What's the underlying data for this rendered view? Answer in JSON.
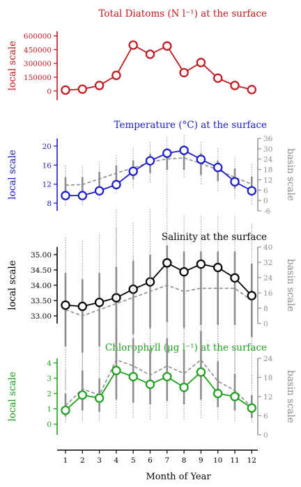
{
  "figure": {
    "xlabel": "Month of Year"
  },
  "chart_data": [
    {
      "type": "line",
      "title": "Total Diatoms (N l⁻¹) at the surface",
      "ylabel_left": "local scale",
      "ylabel_right": "",
      "color": "#c0181c",
      "x": [
        1,
        2,
        3,
        4,
        5,
        6,
        7,
        8,
        9,
        10,
        11,
        12
      ],
      "left_ticks": [
        0,
        150000,
        300000,
        450000,
        600000
      ],
      "left_ylim": [
        -100000,
        650000
      ],
      "series": [
        {
          "values": [
            10000,
            20000,
            60000,
            170000,
            500000,
            400000,
            490000,
            200000,
            310000,
            140000,
            60000,
            15000
          ]
        }
      ],
      "basin": null
    },
    {
      "type": "line",
      "title": "Temperature (°C) at the surface",
      "ylabel_left": "local scale",
      "ylabel_right": "basin scale",
      "color": "#1a1acc",
      "x": [
        1,
        2,
        3,
        4,
        5,
        6,
        7,
        8,
        9,
        10,
        11,
        12
      ],
      "left_ticks": [
        8,
        12,
        16,
        20
      ],
      "left_ylim": [
        6.4,
        21.6
      ],
      "series": [
        {
          "values": [
            9.6,
            9.6,
            10.6,
            11.9,
            14.7,
            16.9,
            18.5,
            19.1,
            17.2,
            15.5,
            12.5,
            10.6
          ]
        }
      ],
      "right_ticks": [
        -6,
        0,
        6,
        12,
        18,
        24,
        30,
        36
      ],
      "right_ylim": [
        -6,
        36
      ],
      "basin": {
        "median": [
          11.8,
          11.9,
          13.1,
          14.3,
          15.4,
          16.6,
          17.3,
          17.5,
          16.4,
          15.0,
          13.4,
          12.0
        ],
        "box_low": [
          9.5,
          9.6,
          10.8,
          12.0,
          13.0,
          14.3,
          15.0,
          15.0,
          13.9,
          12.6,
          11.0,
          9.6
        ],
        "box_high": [
          13.5,
          13.5,
          14.6,
          15.9,
          17.0,
          18.4,
          19.4,
          19.6,
          18.5,
          17.0,
          15.3,
          13.6
        ],
        "whisk_low": [
          7.5,
          7.7,
          8.8,
          10.2,
          11.2,
          12.4,
          13.4,
          13.4,
          12.0,
          10.6,
          9.0,
          7.8
        ],
        "whisk_high": [
          16.0,
          16.0,
          17.0,
          18.4,
          19.6,
          21.0,
          22.0,
          22.5,
          21.0,
          19.8,
          17.8,
          16.2
        ]
      }
    },
    {
      "type": "line",
      "title": "Salinity at the surface",
      "ylabel_left": "local scale",
      "ylabel_right": "basin scale",
      "color": "#000000",
      "x": [
        1,
        2,
        3,
        4,
        5,
        6,
        7,
        8,
        9,
        10,
        11,
        12
      ],
      "left_ticks": [
        33.0,
        33.5,
        34.0,
        34.5,
        35.0
      ],
      "left_tick_labels": [
        "33.00",
        "33.50",
        "34.00",
        "34.50",
        "35.00"
      ],
      "left_ylim": [
        32.75,
        35.25
      ],
      "series": [
        {
          "values": [
            33.35,
            33.31,
            33.44,
            33.59,
            33.87,
            34.11,
            34.73,
            34.44,
            34.69,
            34.58,
            34.24,
            33.66
          ]
        }
      ],
      "right_ticks": [
        0,
        8,
        16,
        24,
        32,
        40
      ],
      "right_ylim": [
        0,
        40
      ],
      "basin": {
        "median": [
          33.2,
          33.0,
          33.2,
          33.4,
          33.6,
          33.8,
          34.0,
          33.8,
          33.9,
          33.9,
          33.9,
          33.5
        ],
        "box_low": [
          32.0,
          31.8,
          32.0,
          32.2,
          32.4,
          32.6,
          32.8,
          32.6,
          32.7,
          32.7,
          32.7,
          32.3
        ],
        "box_high": [
          34.4,
          34.2,
          34.4,
          34.6,
          34.8,
          35.0,
          35.3,
          35.1,
          35.1,
          35.1,
          35.1,
          34.7
        ],
        "whisk_low": [
          30.6,
          30.4,
          30.6,
          30.9,
          31.0,
          31.2,
          31.3,
          31.2,
          31.2,
          31.2,
          31.2,
          30.8
        ],
        "whisk_high": [
          35.6,
          35.5,
          35.7,
          35.9,
          36.1,
          36.5,
          37.5,
          36.3,
          36.3,
          36.3,
          36.3,
          36.0
        ]
      }
    },
    {
      "type": "line",
      "title": "Chlorophyll (μg l⁻¹) at the surface",
      "ylabel_left": "local scale",
      "ylabel_right": "basin scale",
      "color": "#1ca01c",
      "x": [
        1,
        2,
        3,
        4,
        5,
        6,
        7,
        8,
        9,
        10,
        11,
        12
      ],
      "left_ticks": [
        0,
        1,
        2,
        3,
        4
      ],
      "left_ylim": [
        -0.7,
        4.3
      ],
      "series": [
        {
          "values": [
            0.9,
            1.9,
            1.7,
            3.5,
            3.1,
            2.6,
            3.1,
            2.4,
            3.4,
            2.0,
            1.8,
            1.05
          ]
        }
      ],
      "right_ticks": [
        0,
        6,
        12,
        18,
        24
      ],
      "right_ylim": [
        0,
        24
      ],
      "basin": {
        "median": [
          1.2,
          2.3,
          1.9,
          4.2,
          3.8,
          3.2,
          3.8,
          3.3,
          4.2,
          2.8,
          2.2,
          1.1
        ],
        "box_low": [
          0.5,
          0.9,
          0.8,
          1.6,
          1.4,
          1.3,
          1.5,
          1.3,
          1.6,
          1.1,
          0.9,
          0.4
        ],
        "box_high": [
          2.0,
          3.5,
          3.0,
          6.0,
          5.6,
          4.9,
          5.6,
          4.8,
          6.1,
          4.1,
          3.3,
          1.9
        ],
        "whisk_low": [
          0.1,
          0.2,
          0.2,
          0.4,
          0.4,
          0.3,
          0.4,
          0.3,
          0.4,
          0.3,
          0.2,
          0.1
        ],
        "whisk_high": [
          3.5,
          7.2,
          5.0,
          14.0,
          11.0,
          10.0,
          9.0,
          8.0,
          10.0,
          7.0,
          5.0,
          3.2
        ]
      }
    }
  ]
}
